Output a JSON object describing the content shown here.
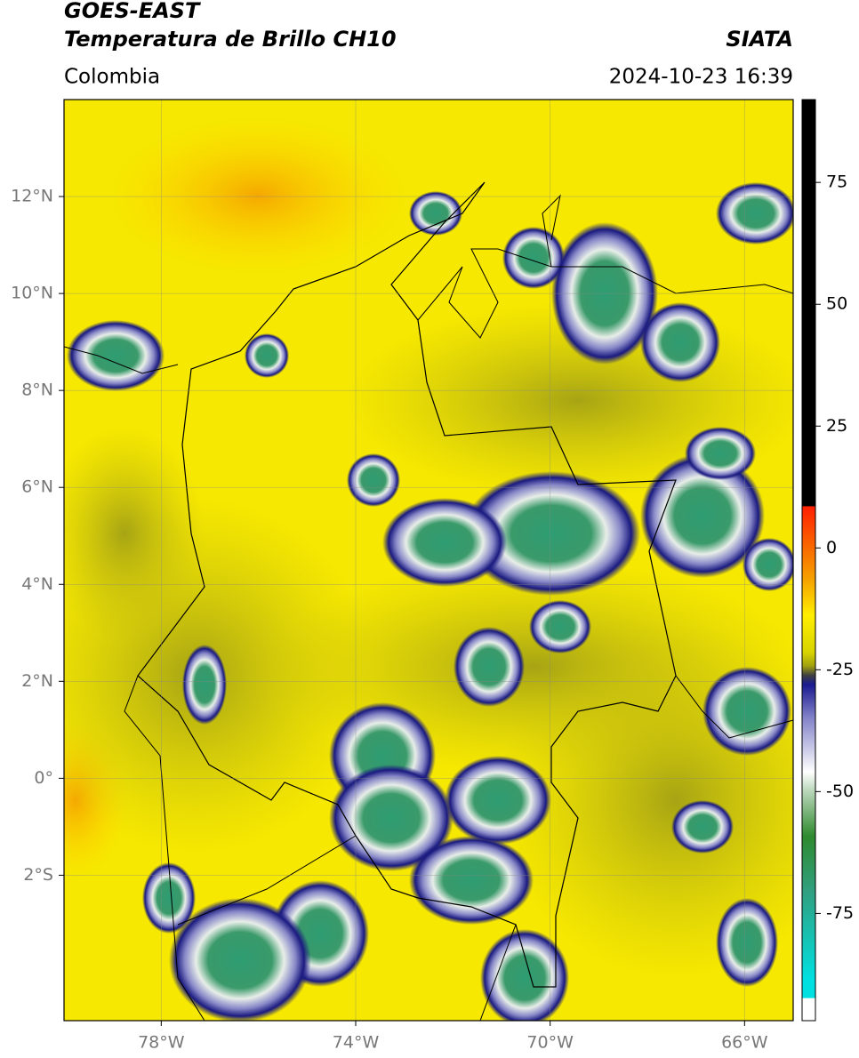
{
  "header": {
    "satellite": "GOES-EAST",
    "product": "Temperatura de Brillo CH10",
    "source": "SIATA",
    "region": "Colombia",
    "datetime": "2024-10-23 16:39"
  },
  "map": {
    "lon_lim": [
      -80,
      -65
    ],
    "lat_lim": [
      -5,
      14
    ],
    "lon_ticks": [
      {
        "value": -78,
        "label": "78°W"
      },
      {
        "value": -74,
        "label": "74°W"
      },
      {
        "value": -70,
        "label": "70°W"
      },
      {
        "value": -66,
        "label": "66°W"
      }
    ],
    "lat_ticks": [
      {
        "value": 12,
        "label": "12°N"
      },
      {
        "value": 10,
        "label": "10°N"
      },
      {
        "value": 8,
        "label": "8°N"
      },
      {
        "value": 6,
        "label": "6°N"
      },
      {
        "value": 4,
        "label": "4°N"
      },
      {
        "value": 2,
        "label": "2°N"
      },
      {
        "value": 0,
        "label": "0°"
      },
      {
        "value": -2,
        "label": "2°S"
      }
    ],
    "grid": true
  },
  "colorbar": {
    "lim": [
      -97,
      92
    ],
    "ticks": [
      75,
      50,
      25,
      0,
      -25,
      -50,
      -75
    ]
  }
}
